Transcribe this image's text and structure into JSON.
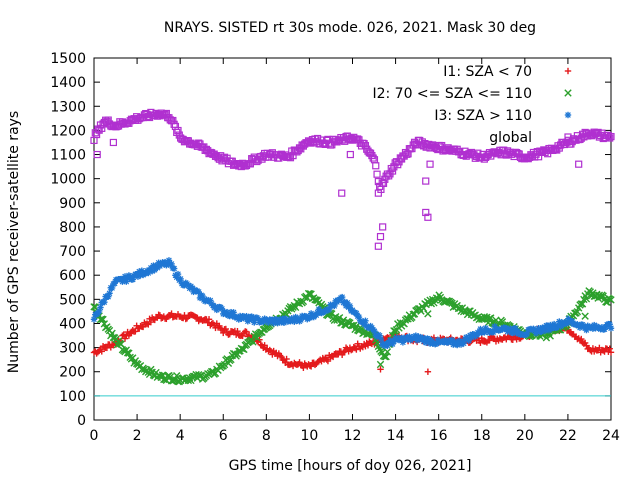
{
  "chart_data": {
    "type": "scatter",
    "title": "NRAYS. SISTED rt 30s mode. 026, 2021. Mask 30 deg",
    "xlabel": "GPS time [hours of doy 026, 2021]",
    "ylabel": "Number of GPS receiver-satellite rays",
    "xlim": [
      0,
      24
    ],
    "ylim": [
      0,
      1500
    ],
    "xticks": [
      0,
      2,
      4,
      6,
      8,
      10,
      12,
      14,
      16,
      18,
      20,
      22,
      24
    ],
    "yticks": [
      0,
      100,
      200,
      300,
      400,
      500,
      600,
      700,
      800,
      900,
      1000,
      1100,
      1200,
      1300,
      1400,
      1500
    ],
    "reference_line": {
      "y": 100,
      "color": "#33cccc"
    },
    "series": [
      {
        "name": "I1: SZA < 70",
        "marker": "+",
        "color": "#e41a1c",
        "x": [
          0,
          1,
          2,
          3,
          4,
          5,
          5.5,
          6,
          6.5,
          7,
          7.5,
          8,
          9,
          10,
          11,
          12,
          13,
          13.5,
          14,
          15,
          15.5,
          16,
          17,
          18,
          19,
          20,
          21,
          22,
          22.5,
          23,
          24
        ],
        "y": [
          280,
          320,
          380,
          430,
          430,
          420,
          400,
          370,
          360,
          360,
          340,
          300,
          240,
          220,
          260,
          300,
          320,
          340,
          350,
          330,
          330,
          330,
          330,
          330,
          340,
          350,
          380,
          380,
          340,
          290,
          290
        ],
        "outliers": [
          {
            "x": 13.3,
            "y": 210
          },
          {
            "x": 15.5,
            "y": 200
          }
        ]
      },
      {
        "name": "I2: 70 <= SZA <= 110",
        "marker": "x",
        "color": "#2ca02c",
        "x": [
          0,
          1,
          2,
          3,
          4,
          5,
          5.5,
          6,
          7,
          8,
          9,
          10,
          11,
          12,
          13,
          13.5,
          14,
          15,
          16,
          17,
          18,
          19,
          20,
          21,
          22,
          23,
          24
        ],
        "y": [
          470,
          330,
          230,
          180,
          170,
          180,
          190,
          230,
          300,
          390,
          450,
          520,
          430,
          390,
          350,
          260,
          380,
          450,
          510,
          460,
          420,
          400,
          360,
          350,
          400,
          530,
          490
        ],
        "outliers": [
          {
            "x": 13.3,
            "y": 230
          },
          {
            "x": 15.5,
            "y": 440
          },
          {
            "x": 22.8,
            "y": 430
          }
        ]
      },
      {
        "name": "I3: SZA > 110",
        "marker": "*",
        "color": "#1f77d4",
        "x": [
          0,
          0.5,
          1,
          2,
          3,
          3.5,
          4,
          5,
          6,
          7,
          8,
          9,
          10,
          11,
          11.5,
          12,
          13,
          13.5,
          14,
          15,
          16,
          17,
          18,
          19,
          20,
          21,
          22,
          23,
          24
        ],
        "y": [
          420,
          500,
          570,
          600,
          640,
          650,
          580,
          510,
          450,
          420,
          410,
          410,
          430,
          470,
          500,
          450,
          370,
          310,
          330,
          340,
          320,
          320,
          370,
          380,
          360,
          380,
          410,
          380,
          390
        ],
        "outliers": []
      },
      {
        "name": "global",
        "marker": "square",
        "color": "#b030d0",
        "x": [
          0,
          0.5,
          1,
          2,
          3,
          3.5,
          4,
          5,
          6,
          6.5,
          7,
          8,
          9,
          10,
          11,
          12,
          12.5,
          13,
          13.3,
          13.6,
          14,
          15,
          16,
          17,
          18,
          19,
          20,
          21,
          22,
          23,
          24
        ],
        "y": [
          1170,
          1240,
          1220,
          1250,
          1270,
          1260,
          1170,
          1130,
          1080,
          1060,
          1060,
          1100,
          1090,
          1160,
          1150,
          1170,
          1140,
          1080,
          960,
          1010,
          1060,
          1150,
          1130,
          1110,
          1090,
          1110,
          1090,
          1110,
          1150,
          1190,
          1170
        ],
        "outliers": [
          {
            "x": 0.15,
            "y": 1100
          },
          {
            "x": 0.9,
            "y": 1150
          },
          {
            "x": 11.5,
            "y": 940
          },
          {
            "x": 11.9,
            "y": 1100
          },
          {
            "x": 13.2,
            "y": 720
          },
          {
            "x": 13.3,
            "y": 760
          },
          {
            "x": 13.4,
            "y": 800
          },
          {
            "x": 13.2,
            "y": 940
          },
          {
            "x": 15.4,
            "y": 860
          },
          {
            "x": 15.5,
            "y": 840
          },
          {
            "x": 15.4,
            "y": 990
          },
          {
            "x": 15.6,
            "y": 1060
          },
          {
            "x": 22.5,
            "y": 1060
          },
          {
            "x": 23.7,
            "y": 1170
          }
        ]
      }
    ],
    "legend_position": "top-right"
  }
}
